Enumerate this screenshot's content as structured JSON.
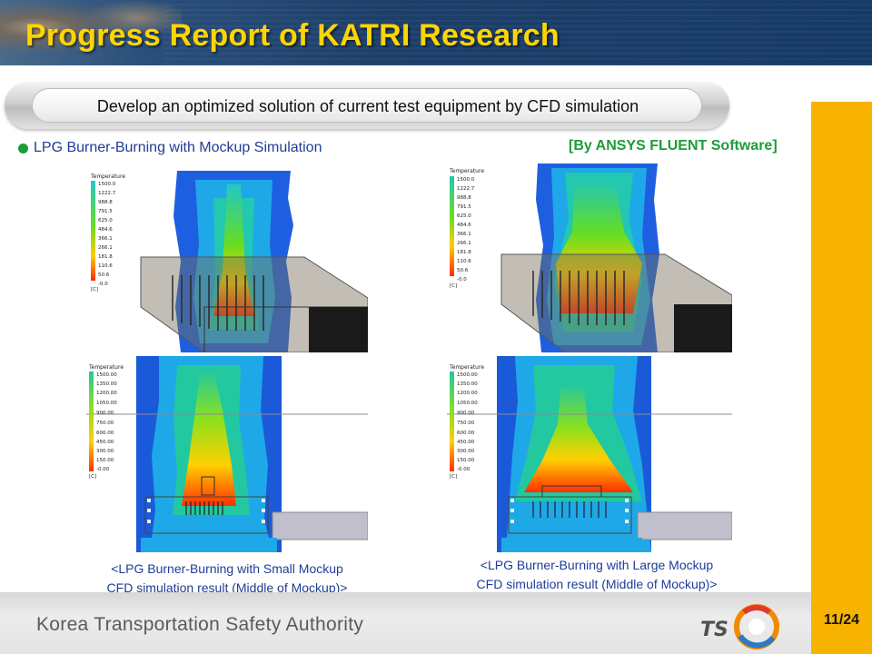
{
  "header": {
    "title": "Progress Report of KATRI Research"
  },
  "subtitle": "Develop an optimized solution of current test equipment by CFD simulation",
  "section": {
    "bullet_text": "LPG Burner-Burning with Mockup Simulation",
    "software_label": "[By ANSYS FLUENT Software]"
  },
  "colors": {
    "title_yellow": "#ffd500",
    "header_navy": "#1d3f6a",
    "accent_orange": "#f7b300",
    "bullet_green": "#1e9c3a",
    "caption_blue": "#1f3c98",
    "sim_background_blue": "#1a5ad8"
  },
  "simulations": {
    "small_iso": {
      "legend_title": "Temperature",
      "legend_values": [
        "1500.0",
        "1222.7",
        "988.8",
        "791.5",
        "625.0",
        "484.6",
        "366.1",
        "266.1",
        "181.8",
        "110.6",
        "50.6",
        "-0.0"
      ],
      "legend_unit": "[C]"
    },
    "large_iso": {
      "legend_title": "Temperature",
      "legend_values": [
        "1500.0",
        "1222.7",
        "988.8",
        "791.5",
        "625.0",
        "484.6",
        "366.1",
        "266.1",
        "181.8",
        "110.6",
        "50.6",
        "-0.0"
      ],
      "legend_unit": "[C]"
    },
    "small_mid": {
      "legend_title": "Temperature",
      "legend_values": [
        "1500.00",
        "1350.00",
        "1200.00",
        "1050.00",
        "900.00",
        "750.00",
        "600.00",
        "450.00",
        "300.00",
        "150.00",
        "-0.00"
      ],
      "legend_unit": "[C]"
    },
    "large_mid": {
      "legend_title": "Temperature",
      "legend_values": [
        "1500.00",
        "1350.00",
        "1200.00",
        "1050.00",
        "900.00",
        "750.00",
        "600.00",
        "450.00",
        "300.00",
        "150.00",
        "-0.00"
      ],
      "legend_unit": "[C]"
    }
  },
  "captions": {
    "small": {
      "line1": "<LPG Burner-Burning with Small Mockup",
      "line2": "CFD simulation result (Middle of Mockup)>"
    },
    "large": {
      "line1": "<LPG Burner-Burning with Large Mockup",
      "line2": "CFD simulation result (Middle of Mockup)>"
    }
  },
  "footer": {
    "organization": "Korea Transportation Safety Authority",
    "logo_text": "TS",
    "page_number": "11/24"
  }
}
